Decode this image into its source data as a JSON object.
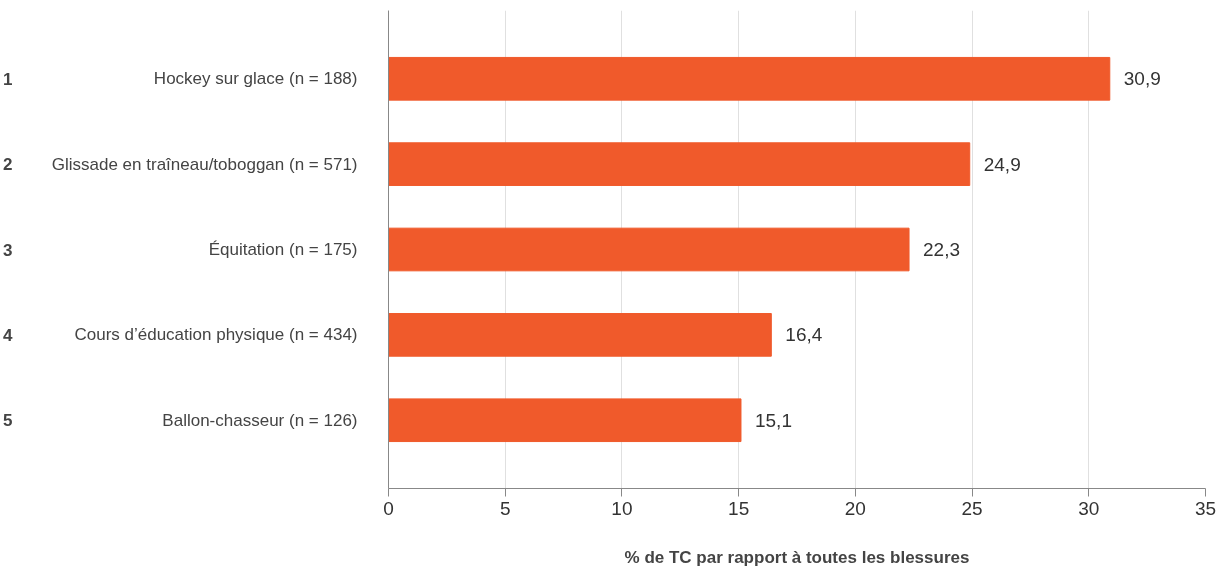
{
  "chart_data": {
    "type": "bar",
    "orientation": "horizontal",
    "categories": [
      "Hockey sur glace (n = 188)",
      "Glissade en traîneau/toboggan (n = 571)",
      "Équitation (n = 175)",
      "Cours d’éducation physique (n = 434)",
      "Ballon-chasseur (n = 126)"
    ],
    "values": [
      30.9,
      24.9,
      22.3,
      16.4,
      15.1
    ],
    "color": "#f05a2b",
    "value_labels": [
      "30,9",
      "24,9",
      "22,3",
      "16,4",
      "15,1"
    ],
    "xlabel": "% de TC par rapport à toutes les blessures",
    "xlim": [
      0,
      35
    ],
    "xticks": [
      0,
      5,
      10,
      15,
      20,
      25,
      30,
      35
    ],
    "grid": "x",
    "annotations": [
      "1",
      "2",
      "3",
      "4",
      "5"
    ]
  }
}
